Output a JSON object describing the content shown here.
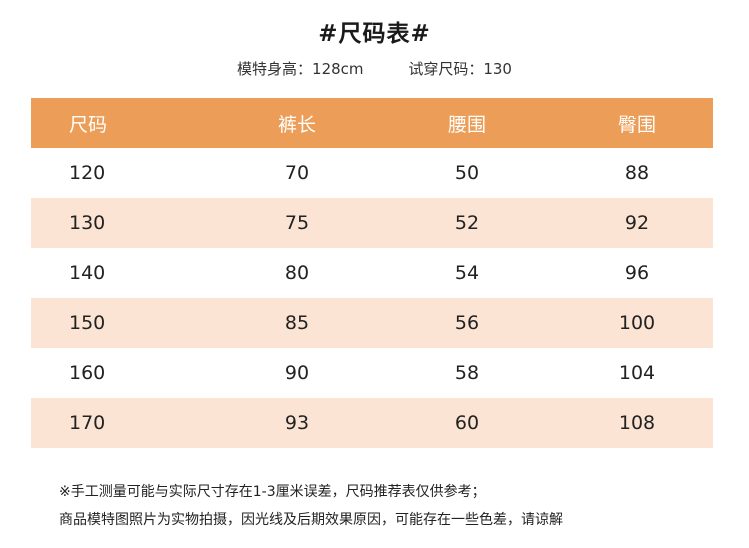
{
  "title": "#尺码表#",
  "subtitle": {
    "model_height": "模特身高：128cm",
    "tried_size": "试穿尺码：130"
  },
  "table": {
    "headers": [
      "尺码",
      "裤长",
      "腰围",
      "臀围"
    ],
    "rows": [
      [
        "120",
        "70",
        "50",
        "88"
      ],
      [
        "130",
        "75",
        "52",
        "92"
      ],
      [
        "140",
        "80",
        "54",
        "96"
      ],
      [
        "150",
        "85",
        "56",
        "100"
      ],
      [
        "160",
        "90",
        "58",
        "104"
      ],
      [
        "170",
        "93",
        "60",
        "108"
      ]
    ]
  },
  "notes": {
    "line1": "※手工测量可能与实际尺寸存在1-3厘米误差，尺码推荐表仅供参考；",
    "line2": "商品模特图照片为实物拍摄，因光线及后期效果原因，可能存在一些色差，请谅解"
  },
  "colors": {
    "header_bg": "#ec9d57",
    "alt_row_bg": "#fbe4d4"
  }
}
